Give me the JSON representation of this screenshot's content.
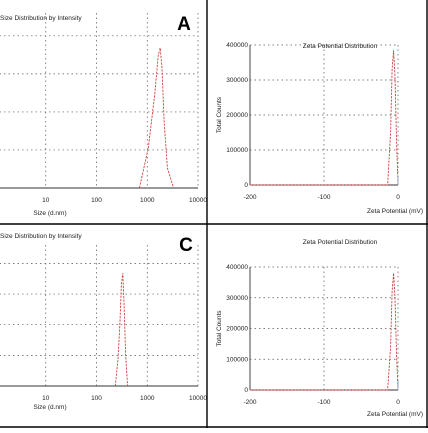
{
  "chart_data": [
    {
      "panel": "A",
      "type": "line",
      "title": "Size Distribution by Intensity",
      "xlabel": "Size (d.nm)",
      "ylabel": "",
      "x_scale": "log",
      "xlim": [
        1,
        10000
      ],
      "xticks": [
        "10",
        "100",
        "1000",
        "10000"
      ],
      "grid": true,
      "series": [
        {
          "color": "#d04040",
          "x": [
            700,
            1050,
            1400,
            1650,
            1800,
            1950,
            2150,
            2500,
            3300
          ],
          "y": [
            0,
            6,
            14,
            20,
            21,
            18,
            10,
            3,
            0
          ]
        }
      ]
    },
    {
      "type": "line",
      "title": "Zeta Potential Distribution",
      "xlabel": "Zeta Potential (mV)",
      "ylabel": "Total Counts",
      "xlim": [
        -200,
        0
      ],
      "ylim": [
        0,
        400000
      ],
      "xticks": [
        "-200",
        "-100",
        "0"
      ],
      "yticks": [
        "0",
        "100000",
        "200000",
        "300000",
        "400000"
      ],
      "grid": true,
      "series": [
        {
          "color": "#d04040",
          "x": [
            -200,
            -14,
            -10,
            -8,
            -6,
            -4,
            -2,
            0
          ],
          "y": [
            0,
            0,
            150000,
            330000,
            385000,
            310000,
            130000,
            0
          ]
        }
      ]
    },
    {
      "panel": "C",
      "type": "line",
      "title": "Size Distribution by Intensity",
      "xlabel": "Size (d.nm)",
      "ylabel": "",
      "x_scale": "log",
      "xlim": [
        1,
        10000
      ],
      "xticks": [
        "10",
        "100",
        "1000",
        "10000"
      ],
      "grid": true,
      "series": [
        {
          "color": "#d04040",
          "x": [
            235,
            265,
            290,
            310,
            330,
            350,
            375,
            410
          ],
          "y": [
            0,
            5,
            12,
            19,
            21,
            15,
            6,
            0
          ]
        }
      ]
    },
    {
      "type": "line",
      "title": "Zeta Potential Distribution",
      "xlabel": "Zeta Potential (mV)",
      "ylabel": "Total Counts",
      "xlim": [
        -200,
        0
      ],
      "ylim": [
        0,
        400000
      ],
      "xticks": [
        "-200",
        "-100",
        "0"
      ],
      "yticks": [
        "0",
        "100000",
        "200000",
        "300000",
        "400000"
      ],
      "grid": true,
      "series": [
        {
          "color": "#d04040",
          "x": [
            -200,
            -14,
            -10,
            -8,
            -6,
            -4,
            -2,
            0
          ],
          "y": [
            0,
            0,
            140000,
            320000,
            380000,
            300000,
            120000,
            0
          ]
        }
      ]
    }
  ]
}
